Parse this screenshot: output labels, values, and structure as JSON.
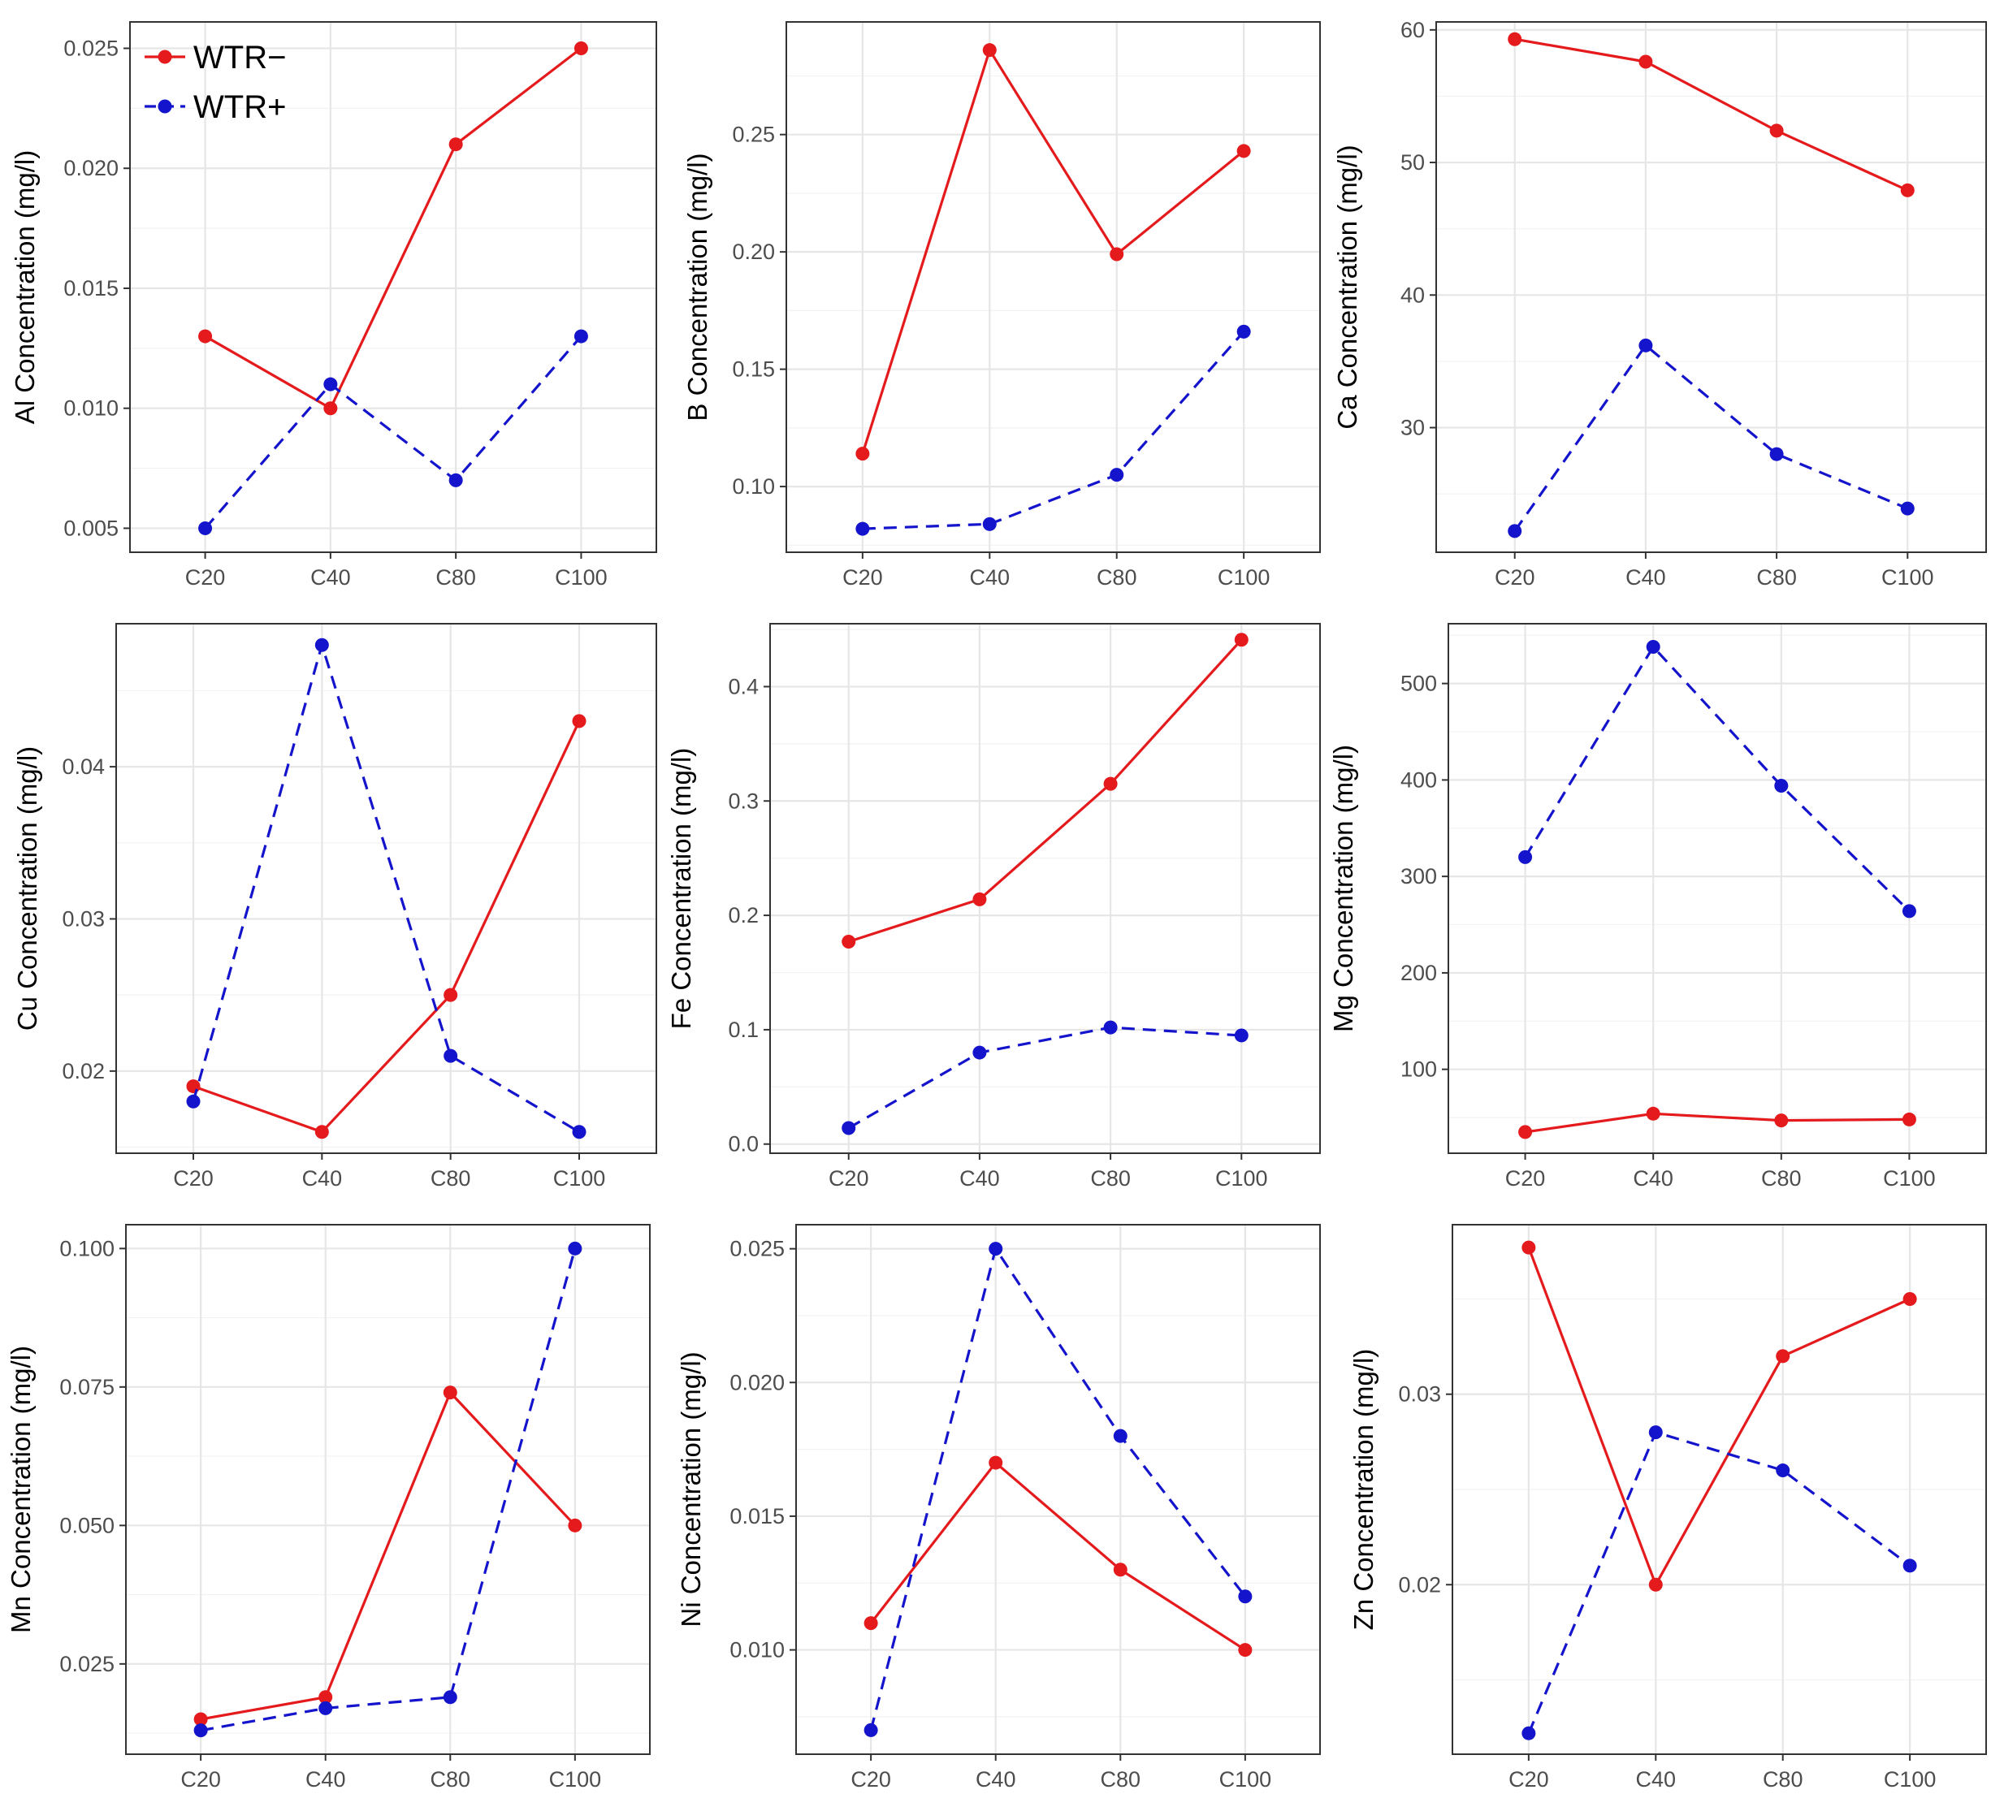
{
  "colors": {
    "wtr_minus": "#e41a1c",
    "wtr_plus": "#1414cc"
  },
  "legend": {
    "items": [
      {
        "label": "WTR−",
        "color": "#e41a1c",
        "dash": "solid"
      },
      {
        "label": "WTR+",
        "color": "#1414cc",
        "dash": "dashed"
      }
    ]
  },
  "chart_data": [
    {
      "type": "line",
      "element": "Al",
      "ylabel": "Al Concentration (mg/l)",
      "categories": [
        "C20",
        "C40",
        "C80",
        "C100"
      ],
      "ylim": [
        0.004,
        0.0261
      ],
      "yticks": [
        0.005,
        0.01,
        0.015,
        0.02,
        0.025
      ],
      "yticklabels": [
        "0.005",
        "0.010",
        "0.015",
        "0.020",
        "0.025"
      ],
      "series": [
        {
          "name": "WTR−",
          "values": [
            0.013,
            0.01,
            0.021,
            0.025
          ]
        },
        {
          "name": "WTR+",
          "values": [
            0.005,
            0.011,
            0.007,
            0.013
          ]
        }
      ]
    },
    {
      "type": "line",
      "element": "B",
      "ylabel": "B Concentration (mg/l)",
      "categories": [
        "C20",
        "C40",
        "C80",
        "C100"
      ],
      "ylim": [
        0.072,
        0.298
      ],
      "yticks": [
        0.1,
        0.15,
        0.2,
        0.25
      ],
      "yticklabels": [
        "0.10",
        "0.15",
        "0.20",
        "0.25"
      ],
      "series": [
        {
          "name": "WTR−",
          "values": [
            0.114,
            0.286,
            0.199,
            0.243
          ]
        },
        {
          "name": "WTR+",
          "values": [
            0.082,
            0.084,
            0.105,
            0.166
          ]
        }
      ]
    },
    {
      "type": "line",
      "element": "Ca",
      "ylabel": "Ca Concentration (mg/l)",
      "categories": [
        "C20",
        "C40",
        "C80",
        "C100"
      ],
      "ylim": [
        20.6,
        60.6
      ],
      "yticks": [
        30,
        40,
        50,
        60
      ],
      "yticklabels": [
        "30",
        "40",
        "50",
        "60"
      ],
      "series": [
        {
          "name": "WTR−",
          "values": [
            59.3,
            57.6,
            52.4,
            47.9
          ]
        },
        {
          "name": "WTR+",
          "values": [
            22.2,
            36.2,
            28.0,
            23.9
          ]
        }
      ]
    },
    {
      "type": "line",
      "element": "Cu",
      "ylabel": "Cu Concentration (mg/l)",
      "categories": [
        "C20",
        "C40",
        "C80",
        "C100"
      ],
      "ylim": [
        0.0146,
        0.0494
      ],
      "yticks": [
        0.02,
        0.03,
        0.04
      ],
      "yticklabels": [
        "0.02",
        "0.03",
        "0.04"
      ],
      "series": [
        {
          "name": "WTR−",
          "values": [
            0.019,
            0.016,
            0.025,
            0.043
          ]
        },
        {
          "name": "WTR+",
          "values": [
            0.018,
            0.048,
            0.021,
            0.016
          ]
        }
      ]
    },
    {
      "type": "line",
      "element": "Fe",
      "ylabel": "Fe Concentration (mg/l)",
      "categories": [
        "C20",
        "C40",
        "C80",
        "C100"
      ],
      "ylim": [
        -0.008,
        0.455
      ],
      "yticks": [
        0.0,
        0.1,
        0.2,
        0.3,
        0.4
      ],
      "yticklabels": [
        "0.0",
        "0.1",
        "0.2",
        "0.3",
        "0.4"
      ],
      "series": [
        {
          "name": "WTR−",
          "values": [
            0.177,
            0.214,
            0.315,
            0.441
          ]
        },
        {
          "name": "WTR+",
          "values": [
            0.014,
            0.08,
            0.102,
            0.095
          ]
        }
      ]
    },
    {
      "type": "line",
      "element": "Mg",
      "ylabel": "Mg Concentration (mg/l)",
      "categories": [
        "C20",
        "C40",
        "C80",
        "C100"
      ],
      "ylim": [
        13,
        562
      ],
      "yticks": [
        100,
        200,
        300,
        400,
        500
      ],
      "yticklabels": [
        "100",
        "200",
        "300",
        "400",
        "500"
      ],
      "series": [
        {
          "name": "WTR−",
          "values": [
            35,
            54,
            47,
            48
          ]
        },
        {
          "name": "WTR+",
          "values": [
            320,
            538,
            394,
            264
          ]
        }
      ]
    },
    {
      "type": "line",
      "element": "Mn",
      "ylabel": "Mn Concentration (mg/l)",
      "categories": [
        "C20",
        "C40",
        "C80",
        "C100"
      ],
      "ylim": [
        0.0087,
        0.1043
      ],
      "yticks": [
        0.025,
        0.05,
        0.075,
        0.1
      ],
      "yticklabels": [
        "0.025",
        "0.050",
        "0.075",
        "0.100"
      ],
      "series": [
        {
          "name": "WTR−",
          "values": [
            0.015,
            0.019,
            0.074,
            0.05
          ]
        },
        {
          "name": "WTR+",
          "values": [
            0.013,
            0.017,
            0.019,
            0.1
          ]
        }
      ]
    },
    {
      "type": "line",
      "element": "Ni",
      "ylabel": "Ni Concentration (mg/l)",
      "categories": [
        "C20",
        "C40",
        "C80",
        "C100"
      ],
      "ylim": [
        0.0061,
        0.0259
      ],
      "yticks": [
        0.01,
        0.015,
        0.02,
        0.025
      ],
      "yticklabels": [
        "0.010",
        "0.015",
        "0.020",
        "0.025"
      ],
      "series": [
        {
          "name": "WTR−",
          "values": [
            0.011,
            0.017,
            0.013,
            0.01
          ]
        },
        {
          "name": "WTR+",
          "values": [
            0.007,
            0.025,
            0.018,
            0.012
          ]
        }
      ]
    },
    {
      "type": "line",
      "element": "Zn",
      "ylabel": "Zn Concentration (mg/l)",
      "categories": [
        "C20",
        "C40",
        "C80",
        "C100"
      ],
      "ylim": [
        0.0111,
        0.0389
      ],
      "yticks": [
        0.02,
        0.03
      ],
      "yticklabels": [
        "0.02",
        "0.03"
      ],
      "series": [
        {
          "name": "WTR−",
          "values": [
            0.0377,
            0.02,
            0.032,
            0.035
          ]
        },
        {
          "name": "WTR+",
          "values": [
            0.0122,
            0.028,
            0.026,
            0.021
          ]
        }
      ]
    }
  ]
}
